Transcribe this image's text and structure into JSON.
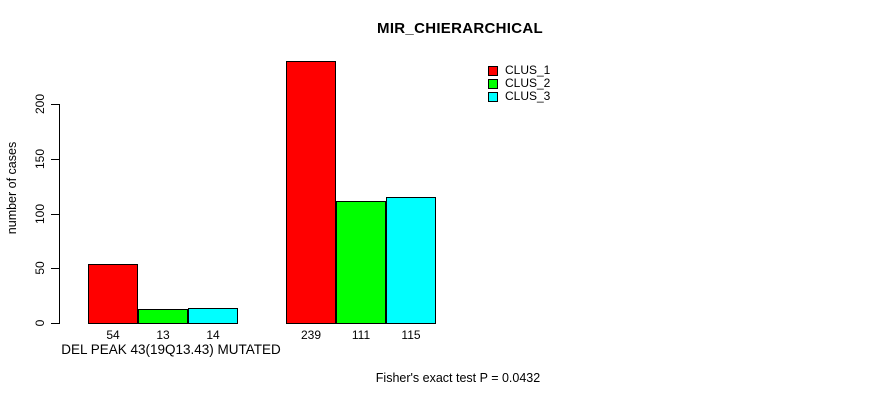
{
  "chart_data": {
    "type": "bar",
    "title": "MIR_CHIERARCHICAL",
    "ylabel": "number of cases",
    "xlabel": "DEL PEAK 43(19Q13.43) MUTATED",
    "annotation": "Fisher's exact test P = 0.0432",
    "yticks": [
      0,
      50,
      100,
      150,
      200
    ],
    "ylim": [
      0,
      200
    ],
    "grid": false,
    "legend_position": "top-right",
    "groups": [
      "DEL PEAK 43(19Q13.43) MUTATED",
      ""
    ],
    "series": [
      {
        "name": "CLUS_1",
        "color": "#ff0000",
        "values": [
          54,
          239
        ]
      },
      {
        "name": "CLUS_2",
        "color": "#00ff00",
        "values": [
          13,
          111
        ]
      },
      {
        "name": "CLUS_3",
        "color": "#00ffff",
        "values": [
          14,
          115
        ]
      }
    ],
    "bar_value_labels": [
      [
        54,
        13,
        14
      ],
      [
        239,
        111,
        115
      ]
    ]
  },
  "colors": {
    "axis": "#000000",
    "background": "#ffffff",
    "bar_border": "#000000"
  }
}
